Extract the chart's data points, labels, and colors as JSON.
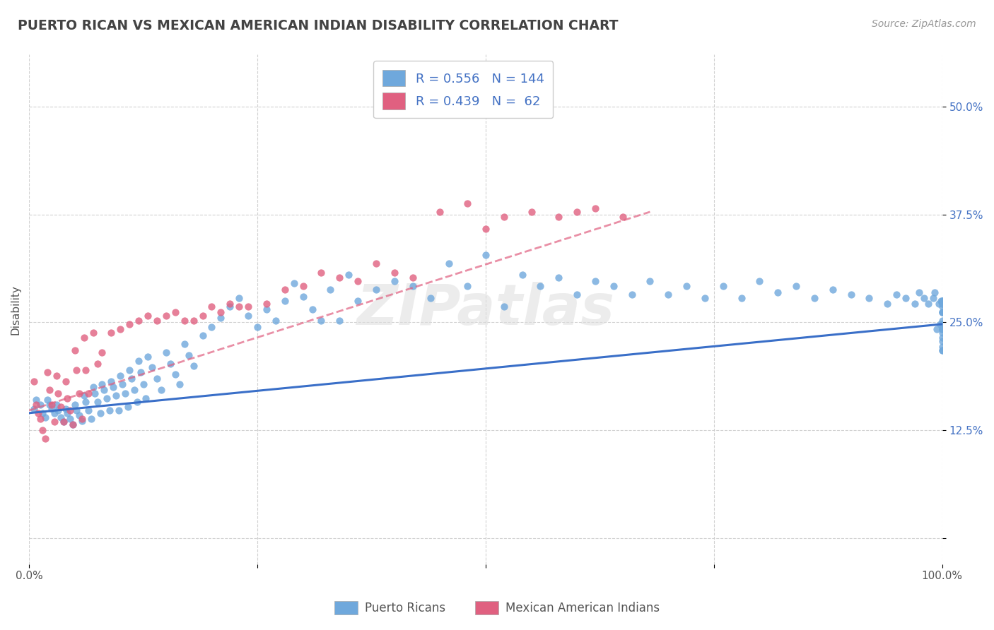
{
  "title": "PUERTO RICAN VS MEXICAN AMERICAN INDIAN DISABILITY CORRELATION CHART",
  "source": "Source: ZipAtlas.com",
  "ylabel": "Disability",
  "xlim": [
    0.0,
    1.0
  ],
  "ylim": [
    -0.03,
    0.56
  ],
  "xticks": [
    0.0,
    0.25,
    0.5,
    0.75,
    1.0
  ],
  "xticklabels": [
    "0.0%",
    "",
    "",
    "",
    "100.0%"
  ],
  "yticks": [
    0.0,
    0.125,
    0.25,
    0.375,
    0.5
  ],
  "yticklabels": [
    "",
    "12.5%",
    "25.0%",
    "37.5%",
    "50.0%"
  ],
  "blue_color": "#6fa8dc",
  "pink_color": "#e06080",
  "blue_line_color": "#3a6fc8",
  "pink_line_color": "#e06080",
  "title_color": "#434343",
  "source_color": "#999999",
  "grid_color": "#cccccc",
  "legend_text_color": "#4472c4",
  "blue_scatter_x": [
    0.005,
    0.008,
    0.012,
    0.015,
    0.018,
    0.02,
    0.022,
    0.025,
    0.028,
    0.03,
    0.032,
    0.035,
    0.038,
    0.04,
    0.042,
    0.045,
    0.048,
    0.05,
    0.052,
    0.055,
    0.058,
    0.06,
    0.062,
    0.065,
    0.068,
    0.07,
    0.072,
    0.075,
    0.078,
    0.08,
    0.082,
    0.085,
    0.088,
    0.09,
    0.092,
    0.095,
    0.098,
    0.1,
    0.102,
    0.105,
    0.108,
    0.11,
    0.112,
    0.115,
    0.118,
    0.12,
    0.122,
    0.125,
    0.128,
    0.13,
    0.135,
    0.14,
    0.145,
    0.15,
    0.155,
    0.16,
    0.165,
    0.17,
    0.175,
    0.18,
    0.19,
    0.2,
    0.21,
    0.22,
    0.23,
    0.24,
    0.25,
    0.26,
    0.27,
    0.28,
    0.29,
    0.3,
    0.31,
    0.32,
    0.33,
    0.34,
    0.35,
    0.36,
    0.38,
    0.4,
    0.42,
    0.44,
    0.46,
    0.48,
    0.5,
    0.52,
    0.54,
    0.56,
    0.58,
    0.6,
    0.62,
    0.64,
    0.66,
    0.68,
    0.7,
    0.72,
    0.74,
    0.76,
    0.78,
    0.8,
    0.82,
    0.84,
    0.86,
    0.88,
    0.9,
    0.92,
    0.94,
    0.95,
    0.96,
    0.97,
    0.975,
    0.98,
    0.985,
    0.99,
    0.992,
    0.994,
    0.996,
    0.998,
    0.999,
    1.0,
    1.0,
    1.0,
    1.0,
    1.0,
    1.0,
    1.0,
    1.0,
    1.0,
    1.0,
    1.0,
    1.0,
    1.0,
    1.0,
    1.0,
    1.0,
    1.0,
    1.0,
    1.0,
    1.0,
    1.0
  ],
  "blue_scatter_y": [
    0.15,
    0.16,
    0.155,
    0.145,
    0.14,
    0.16,
    0.155,
    0.15,
    0.145,
    0.155,
    0.148,
    0.14,
    0.135,
    0.15,
    0.145,
    0.138,
    0.132,
    0.155,
    0.148,
    0.142,
    0.136,
    0.165,
    0.158,
    0.148,
    0.138,
    0.175,
    0.168,
    0.158,
    0.145,
    0.178,
    0.172,
    0.162,
    0.148,
    0.182,
    0.175,
    0.165,
    0.148,
    0.188,
    0.178,
    0.168,
    0.152,
    0.195,
    0.185,
    0.172,
    0.158,
    0.205,
    0.192,
    0.178,
    0.162,
    0.21,
    0.198,
    0.185,
    0.172,
    0.215,
    0.202,
    0.19,
    0.178,
    0.225,
    0.212,
    0.2,
    0.235,
    0.245,
    0.255,
    0.268,
    0.278,
    0.258,
    0.245,
    0.265,
    0.252,
    0.275,
    0.295,
    0.28,
    0.265,
    0.252,
    0.288,
    0.252,
    0.305,
    0.275,
    0.288,
    0.298,
    0.292,
    0.278,
    0.318,
    0.292,
    0.328,
    0.268,
    0.305,
    0.292,
    0.302,
    0.282,
    0.298,
    0.292,
    0.282,
    0.298,
    0.282,
    0.292,
    0.278,
    0.292,
    0.278,
    0.298,
    0.285,
    0.292,
    0.278,
    0.288,
    0.282,
    0.278,
    0.272,
    0.282,
    0.278,
    0.272,
    0.285,
    0.278,
    0.272,
    0.278,
    0.285,
    0.242,
    0.272,
    0.248,
    0.275,
    0.218,
    0.248,
    0.275,
    0.272,
    0.262,
    0.275,
    0.268,
    0.272,
    0.262,
    0.275,
    0.248,
    0.242,
    0.218,
    0.228,
    0.252,
    0.242,
    0.222,
    0.262,
    0.242,
    0.238,
    0.232
  ],
  "pink_scatter_x": [
    0.005,
    0.008,
    0.01,
    0.012,
    0.015,
    0.018,
    0.02,
    0.022,
    0.025,
    0.028,
    0.03,
    0.032,
    0.035,
    0.038,
    0.04,
    0.042,
    0.045,
    0.048,
    0.05,
    0.052,
    0.055,
    0.058,
    0.06,
    0.062,
    0.065,
    0.07,
    0.075,
    0.08,
    0.09,
    0.1,
    0.11,
    0.12,
    0.13,
    0.14,
    0.15,
    0.16,
    0.17,
    0.18,
    0.19,
    0.2,
    0.21,
    0.22,
    0.23,
    0.24,
    0.26,
    0.28,
    0.3,
    0.32,
    0.34,
    0.36,
    0.38,
    0.4,
    0.42,
    0.45,
    0.48,
    0.5,
    0.52,
    0.55,
    0.58,
    0.6,
    0.62,
    0.65
  ],
  "pink_scatter_y": [
    0.182,
    0.155,
    0.145,
    0.138,
    0.125,
    0.115,
    0.192,
    0.172,
    0.155,
    0.135,
    0.188,
    0.168,
    0.152,
    0.135,
    0.182,
    0.162,
    0.148,
    0.132,
    0.218,
    0.195,
    0.168,
    0.138,
    0.232,
    0.195,
    0.168,
    0.238,
    0.202,
    0.215,
    0.238,
    0.242,
    0.248,
    0.252,
    0.258,
    0.252,
    0.258,
    0.262,
    0.252,
    0.252,
    0.258,
    0.268,
    0.262,
    0.272,
    0.268,
    0.268,
    0.272,
    0.288,
    0.292,
    0.308,
    0.302,
    0.298,
    0.318,
    0.308,
    0.302,
    0.378,
    0.388,
    0.358,
    0.372,
    0.378,
    0.372,
    0.378,
    0.382,
    0.372
  ],
  "blue_trendline_x": [
    0.0,
    1.0
  ],
  "blue_trendline_y": [
    0.145,
    0.248
  ],
  "pink_trendline_x": [
    0.0,
    0.68
  ],
  "pink_trendline_y": [
    0.148,
    0.378
  ]
}
